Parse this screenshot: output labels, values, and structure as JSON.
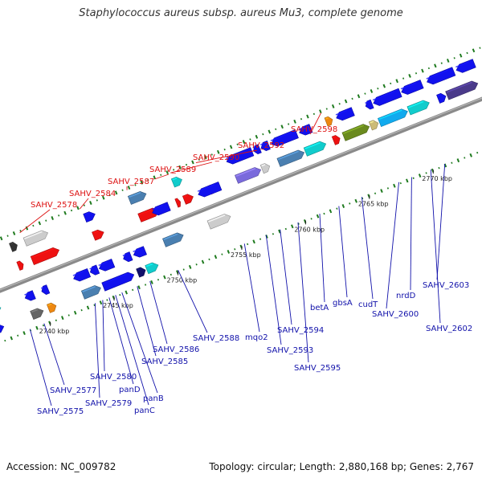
{
  "title": "Staphylococcus aureus subsp. aureus Mu3, complete genome",
  "footer": {
    "accession": "Accession: NC_009782",
    "summary": "Topology: circular; Length: 2,880,168 bp; Genes: 2,767"
  },
  "colors": {
    "backbone": "#8a8a8a",
    "tick": "#1e7a1e",
    "forward_label": "#dd1111",
    "reverse_label": "#1111aa",
    "rna": "#ee1111",
    "cds": "#1111ee"
  },
  "ruler": {
    "unit": "kbp",
    "labels": [
      {
        "text": "2740 kbp",
        "pos": 2740
      },
      {
        "text": "2745 kbp",
        "pos": 2745
      },
      {
        "text": "2750 kbp",
        "pos": 2750
      },
      {
        "text": "2755 kbp",
        "pos": 2755
      },
      {
        "text": "2760 kbp",
        "pos": 2760
      },
      {
        "text": "2765 kbp",
        "pos": 2765
      },
      {
        "text": "2770 kbp",
        "pos": 2770
      }
    ]
  },
  "forward_labels": [
    {
      "text": "SAHV_2578",
      "at": 2740.4
    },
    {
      "text": "SAHV_2584",
      "at": 2745.1
    },
    {
      "text": "SAHV_2587",
      "at": 2748.8
    },
    {
      "text": "SAHV_2589",
      "at": 2751.0
    },
    {
      "text": "SAHV_2590",
      "at": 2752.2
    },
    {
      "text": "SAHV_2592",
      "at": 2754.2
    },
    {
      "text": "SAHV_2598",
      "at": 2764.0
    }
  ],
  "reverse_labels": [
    {
      "text": "SAHV_2575",
      "at": 2738.5
    },
    {
      "text": "SAHV_2577",
      "at": 2739.6
    },
    {
      "text": "SAHV_2579",
      "at": 2743.6
    },
    {
      "text": "SAHV_2580",
      "at": 2744.2
    },
    {
      "text": "panD",
      "at": 2744.7
    },
    {
      "text": "panB",
      "at": 2745.7
    },
    {
      "text": "panC",
      "at": 2745.2
    },
    {
      "text": "SAHV_2585",
      "at": 2746.9
    },
    {
      "text": "SAHV_2586",
      "at": 2747.9
    },
    {
      "text": "SAHV_2588",
      "at": 2750.1
    },
    {
      "text": "mqo2",
      "at": 2755.3
    },
    {
      "text": "SAHV_2593",
      "at": 2757.0
    },
    {
      "text": "SAHV_2594",
      "at": 2758.1
    },
    {
      "text": "SAHV_2595",
      "at": 2759.5
    },
    {
      "text": "betA",
      "at": 2761.2
    },
    {
      "text": "gbsA",
      "at": 2762.7
    },
    {
      "text": "cudT",
      "at": 2764.5
    },
    {
      "text": "SAHV_2600",
      "at": 2767.4
    },
    {
      "text": "nrdD",
      "at": 2768.4
    },
    {
      "text": "SAHV_2602",
      "at": 2769.9
    },
    {
      "text": "SAHV_2603",
      "at": 2771.0
    }
  ],
  "features": [
    {
      "track": 3,
      "start": 2740.5,
      "end": 2742.3,
      "strand": "+",
      "color": "#cccccc"
    },
    {
      "track": 2,
      "start": 2740.5,
      "end": 2742.6,
      "strand": "+",
      "color": "#ee1111"
    },
    {
      "track": 2,
      "start": 2734.8,
      "end": 2736.4,
      "strand": "+",
      "color": "#ee1111"
    },
    {
      "track": 3,
      "start": 2735.0,
      "end": 2735.9,
      "strand": "+",
      "color": "#11aaee"
    },
    {
      "track": 3,
      "start": 2739.4,
      "end": 2739.9,
      "strand": "+",
      "color": "#333333"
    },
    {
      "track": 2,
      "start": 2739.4,
      "end": 2739.8,
      "strand": "+",
      "color": "#ee1111"
    },
    {
      "track": 3,
      "start": 2745.2,
      "end": 2746.0,
      "strand": "+",
      "color": "#1111ee"
    },
    {
      "track": 2,
      "start": 2745.3,
      "end": 2746.1,
      "strand": "+",
      "color": "#ee1111"
    },
    {
      "track": 3,
      "start": 2748.7,
      "end": 2750.0,
      "strand": "+",
      "color": "#4a7fb0"
    },
    {
      "track": 2,
      "start": 2748.9,
      "end": 2750.4,
      "strand": "+",
      "color": "#ee1111"
    },
    {
      "track": 3,
      "start": 2752.1,
      "end": 2752.8,
      "strand": "+",
      "color": "#11cccc"
    },
    {
      "track": 2,
      "start": 2751.8,
      "end": 2752.1,
      "strand": "+",
      "color": "#ee1111"
    },
    {
      "track": 2,
      "start": 2752.4,
      "end": 2753.1,
      "strand": "+",
      "color": "#ee1111"
    },
    {
      "track": 2,
      "start": 2754.4,
      "end": 2754.7,
      "strand": "+",
      "color": "#ee1111"
    },
    {
      "track": 3,
      "start": 2764.1,
      "end": 2764.6,
      "strand": "+",
      "color": "#ee8811"
    },
    {
      "track": 2,
      "start": 2764.1,
      "end": 2764.6,
      "strand": "+",
      "color": "#ee1111"
    },
    {
      "track": 1,
      "start": 2736.0,
      "end": 2737.1,
      "strand": "+",
      "color": "#11cccc"
    },
    {
      "track": 0,
      "start": 2735.8,
      "end": 2736.8,
      "strand": "+",
      "color": "#1111ee"
    },
    {
      "track": 1,
      "start": 2739.0,
      "end": 2739.7,
      "strand": "-",
      "color": "#1111ee"
    },
    {
      "track": 0,
      "start": 2739.0,
      "end": 2739.9,
      "strand": "+",
      "color": "#666666"
    },
    {
      "track": 1,
      "start": 2740.3,
      "end": 2740.8,
      "strand": "-",
      "color": "#1111ee"
    },
    {
      "track": 0,
      "start": 2740.3,
      "end": 2740.9,
      "strand": "+",
      "color": "#ee8811"
    },
    {
      "track": 1,
      "start": 2742.8,
      "end": 2744.0,
      "strand": "-",
      "color": "#1111ee"
    },
    {
      "track": 0,
      "start": 2743.0,
      "end": 2744.4,
      "strand": "+",
      "color": "#4a7fb0"
    },
    {
      "track": 1,
      "start": 2744.1,
      "end": 2744.7,
      "strand": "-",
      "color": "#1111ee"
    },
    {
      "track": 1,
      "start": 2744.8,
      "end": 2745.9,
      "strand": "-",
      "color": "#1111ee"
    },
    {
      "track": 0,
      "start": 2744.6,
      "end": 2747.0,
      "strand": "+",
      "color": "#1111ee"
    },
    {
      "track": 1,
      "start": 2746.7,
      "end": 2747.3,
      "strand": "-",
      "color": "#1111ee"
    },
    {
      "track": 1,
      "start": 2747.5,
      "end": 2748.4,
      "strand": "-",
      "color": "#1111ee"
    },
    {
      "track": 0,
      "start": 2747.3,
      "end": 2747.9,
      "strand": "+",
      "color": "#11116a"
    },
    {
      "track": 0,
      "start": 2748.0,
      "end": 2748.9,
      "strand": "+",
      "color": "#11cccc"
    },
    {
      "track": 2,
      "start": 2749.9,
      "end": 2751.2,
      "strand": "-",
      "color": "#1111ee"
    },
    {
      "track": 1,
      "start": 2749.9,
      "end": 2751.4,
      "strand": "+",
      "color": "#4a7fb0"
    },
    {
      "track": 2,
      "start": 2753.5,
      "end": 2755.2,
      "strand": "-",
      "color": "#1111ee"
    },
    {
      "track": 1,
      "start": 2753.4,
      "end": 2755.1,
      "strand": "+",
      "color": "#cccccc"
    },
    {
      "track": 3,
      "start": 2756.3,
      "end": 2758.3,
      "strand": "-",
      "color": "#1111ee"
    },
    {
      "track": 3,
      "start": 2758.4,
      "end": 2758.9,
      "strand": "-",
      "color": "#1111ee"
    },
    {
      "track": 3,
      "start": 2759.0,
      "end": 2759.6,
      "strand": "-",
      "color": "#1111ee"
    },
    {
      "track": 2,
      "start": 2756.5,
      "end": 2758.4,
      "strand": "+",
      "color": "#7a6adc"
    },
    {
      "track": 2,
      "start": 2758.5,
      "end": 2759.1,
      "strand": "+",
      "color": "#cccccc"
    },
    {
      "track": 3,
      "start": 2759.8,
      "end": 2761.8,
      "strand": "-",
      "color": "#1111ee"
    },
    {
      "track": 2,
      "start": 2759.8,
      "end": 2761.8,
      "strand": "+",
      "color": "#4a7fb0"
    },
    {
      "track": 3,
      "start": 2762.0,
      "end": 2762.9,
      "strand": "-",
      "color": "#1111ee"
    },
    {
      "track": 2,
      "start": 2761.9,
      "end": 2763.5,
      "strand": "+",
      "color": "#11cccc"
    },
    {
      "track": 3,
      "start": 2764.9,
      "end": 2766.2,
      "strand": "-",
      "color": "#1111ee"
    },
    {
      "track": 2,
      "start": 2764.9,
      "end": 2766.9,
      "strand": "+",
      "color": "#6a8a1e"
    },
    {
      "track": 2,
      "start": 2767.0,
      "end": 2767.6,
      "strand": "+",
      "color": "#ccbb77"
    },
    {
      "track": 3,
      "start": 2767.2,
      "end": 2767.7,
      "strand": "-",
      "color": "#1111ee"
    },
    {
      "track": 3,
      "start": 2767.8,
      "end": 2769.9,
      "strand": "-",
      "color": "#1111ee"
    },
    {
      "track": 2,
      "start": 2767.7,
      "end": 2769.9,
      "strand": "+",
      "color": "#11aaee"
    },
    {
      "track": 3,
      "start": 2770.0,
      "end": 2771.6,
      "strand": "-",
      "color": "#1111ee"
    },
    {
      "track": 2,
      "start": 2770.0,
      "end": 2771.6,
      "strand": "+",
      "color": "#11cccc"
    },
    {
      "track": 3,
      "start": 2772.0,
      "end": 2774.1,
      "strand": "-",
      "color": "#1111ee"
    },
    {
      "track": 3,
      "start": 2774.3,
      "end": 2775.7,
      "strand": "-",
      "color": "#1111ee"
    },
    {
      "track": 2,
      "start": 2772.3,
      "end": 2772.9,
      "strand": "+",
      "color": "#1111ee"
    },
    {
      "track": 2,
      "start": 2773.0,
      "end": 2775.4,
      "strand": "+",
      "color": "#4a3a8a"
    },
    {
      "track": 3,
      "start": 2776.5,
      "end": 2777.0,
      "strand": "-",
      "color": "#1111ee"
    },
    {
      "track": 2,
      "start": 2776.1,
      "end": 2776.8,
      "strand": "+",
      "color": "#ccbb77"
    }
  ]
}
